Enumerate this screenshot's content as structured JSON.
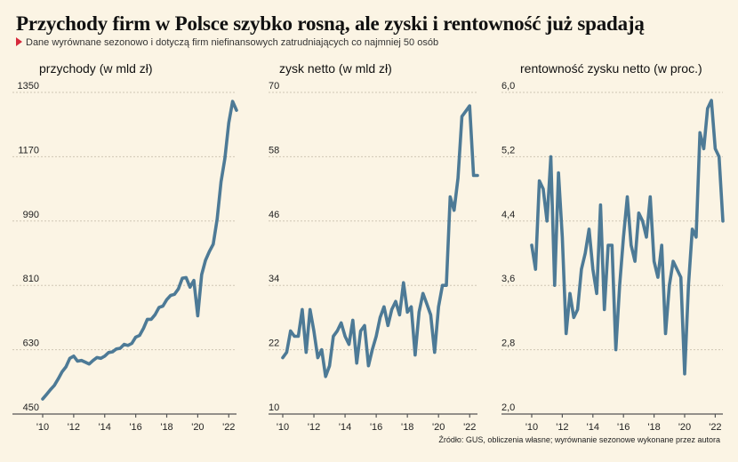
{
  "title": "Przychody firm w Polsce szybko rosną, ale zyski i rentowność już spadają",
  "subtitle": "Dane wyrównane sezonowo i dotyczą firm niefinansowych zatrudniających co najmniej 50 osób",
  "source": "Źródło: GUS, obliczenia własne; wyrównanie sezonowe wykonane przez autora",
  "colors": {
    "line": "#4d7a96",
    "background": "#fbf4e4",
    "accent": "#d6283a"
  },
  "chart_data": [
    {
      "type": "line",
      "title": "przychody (w mld zł)",
      "x_start": 2010,
      "x_step": 0.25,
      "x_ticks": [
        2010,
        2012,
        2014,
        2016,
        2018,
        2020,
        2022
      ],
      "x_tick_labels": [
        "'10",
        "'12",
        "'14",
        "'16",
        "'18",
        "'20",
        "'22"
      ],
      "ylim": [
        450,
        1350
      ],
      "y_ticks": [
        450,
        630,
        810,
        990,
        1170,
        1350
      ],
      "values": [
        492,
        505,
        518,
        530,
        548,
        568,
        582,
        606,
        612,
        598,
        600,
        595,
        590,
        600,
        608,
        606,
        612,
        622,
        624,
        632,
        634,
        645,
        642,
        648,
        665,
        670,
        690,
        715,
        715,
        728,
        748,
        752,
        770,
        782,
        785,
        800,
        830,
        832,
        805,
        824,
        725,
        840,
        880,
        905,
        925,
        995,
        1100,
        1165,
        1265,
        1325,
        1300
      ],
      "grid": true,
      "legend": "none"
    },
    {
      "type": "line",
      "title": "zysk netto (w mld zł)",
      "x_start": 2010,
      "x_step": 0.25,
      "x_ticks": [
        2010,
        2012,
        2014,
        2016,
        2018,
        2020,
        2022
      ],
      "x_tick_labels": [
        "'10",
        "'12",
        "'14",
        "'16",
        "'18",
        "'20",
        "'22"
      ],
      "ylim": [
        10,
        70
      ],
      "y_ticks": [
        10,
        22,
        34,
        46,
        58,
        70
      ],
      "values": [
        20.5,
        21.5,
        25.5,
        24.5,
        24.5,
        29.5,
        21.5,
        29.5,
        25.5,
        20.5,
        22,
        17,
        19,
        24.5,
        25.5,
        27,
        24.5,
        23,
        27.5,
        19.5,
        25.5,
        26.5,
        19,
        22,
        24.5,
        28,
        30,
        26.5,
        29.5,
        31,
        28.5,
        34.5,
        29,
        30,
        21,
        29,
        32.5,
        30.5,
        28.5,
        21.5,
        30,
        34,
        34,
        50.5,
        48,
        54,
        65.5,
        66.5,
        67.5,
        54.5,
        54.5
      ],
      "grid": true,
      "legend": "none"
    },
    {
      "type": "line",
      "title": "rentowność zysku netto (w proc.)",
      "x_start": 2010,
      "x_step": 0.25,
      "x_ticks": [
        2010,
        2012,
        2014,
        2016,
        2018,
        2020,
        2022
      ],
      "x_tick_labels": [
        "'10",
        "'12",
        "'14",
        "'16",
        "'18",
        "'20",
        "'22"
      ],
      "ylim": [
        2.0,
        6.0
      ],
      "y_ticks": [
        2.0,
        2.8,
        3.6,
        4.4,
        5.2,
        6.0
      ],
      "y_tick_labels": [
        "2,0",
        "2,8",
        "3,6",
        "4,4",
        "5,2",
        "6,0"
      ],
      "values": [
        4.1,
        3.8,
        4.9,
        4.8,
        4.4,
        5.2,
        3.6,
        5.0,
        4.2,
        3.0,
        3.5,
        3.2,
        3.3,
        3.8,
        4.0,
        4.3,
        3.8,
        3.5,
        4.6,
        3.3,
        4.1,
        4.1,
        2.8,
        3.6,
        4.2,
        4.7,
        4.1,
        3.9,
        4.5,
        4.4,
        4.2,
        4.7,
        3.9,
        3.7,
        4.1,
        3.0,
        3.6,
        3.9,
        3.8,
        3.7,
        2.5,
        3.6,
        4.3,
        4.2,
        5.5,
        5.3,
        5.8,
        5.9,
        5.3,
        5.2,
        4.4
      ],
      "grid": true,
      "legend": "none"
    }
  ]
}
